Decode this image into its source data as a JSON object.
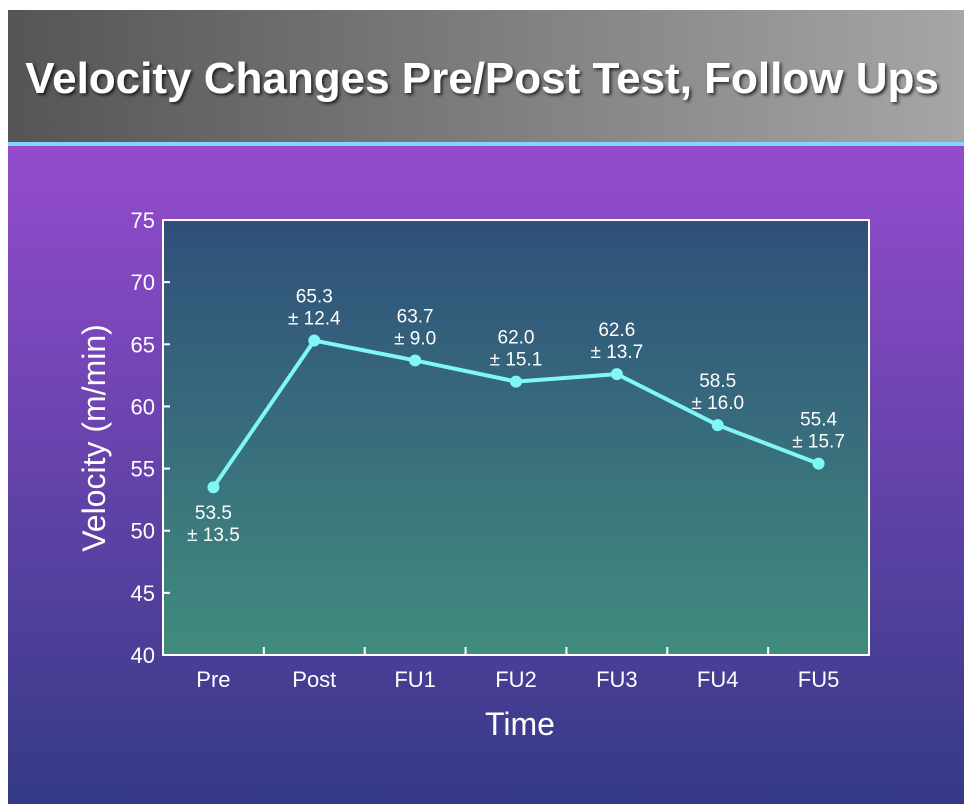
{
  "chart_data": {
    "type": "line",
    "title": "Velocity  Changes  Pre/Post  Test,  Follow  Ups",
    "x_label": "Time",
    "y_label": "Velocity (m/min)",
    "categories": [
      "Pre",
      "Post",
      "FU1",
      "FU2",
      "FU3",
      "FU4",
      "FU5"
    ],
    "values": [
      53.5,
      65.3,
      63.7,
      62.0,
      62.6,
      58.5,
      55.4
    ],
    "value_labels": [
      "53.5",
      "65.3",
      "63.7",
      "62.0",
      "62.6",
      "58.5",
      "55.4"
    ],
    "error_labels": [
      "± 13.5",
      "± 12.4",
      "± 9.0",
      "± 15.1",
      "± 13.7",
      "± 16.0",
      "± 15.7"
    ],
    "color": "#7ff7f7",
    "ylim": [
      40,
      75
    ],
    "yticks": [
      40,
      45,
      50,
      55,
      60,
      65,
      70,
      75
    ]
  }
}
